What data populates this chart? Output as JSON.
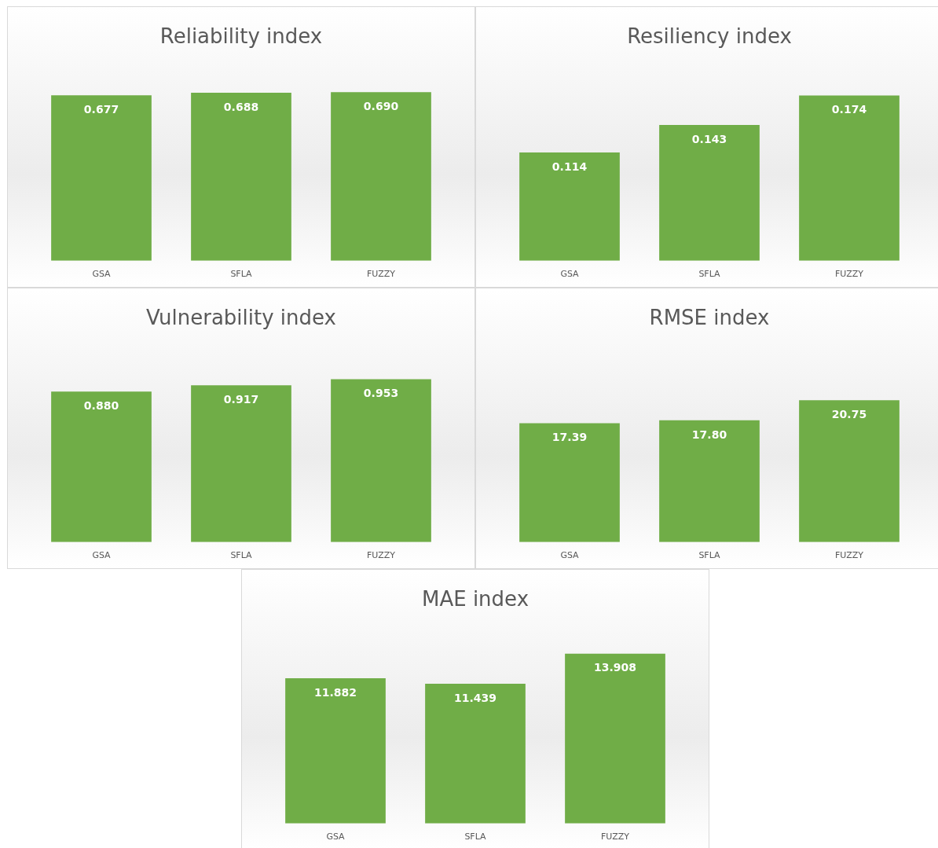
{
  "chart_data": [
    {
      "type": "bar",
      "title": "Reliability index",
      "categories": [
        "GSA",
        "SFLA",
        "FUZZY"
      ],
      "values": [
        0.677,
        0.688,
        0.69
      ],
      "value_labels": [
        "0.677",
        "0.688",
        "0.690"
      ],
      "color": "#70ad47",
      "grid": false,
      "tick_labels": "x",
      "legend": false
    },
    {
      "type": "bar",
      "title": "Resiliency index",
      "categories": [
        "GSA",
        "SFLA",
        "FUZZY"
      ],
      "values": [
        0.114,
        0.143,
        0.174
      ],
      "color": "#70ad47",
      "data_labels": true,
      "grid": false,
      "tick_labels": "x",
      "legend": false
    },
    {
      "type": "bar",
      "title": "Vulnerability index",
      "categories": [
        "GSA",
        "SFLA",
        "FUZZY"
      ],
      "values": [
        0.88,
        0.917,
        0.953
      ],
      "value_labels": [
        "0.880",
        "0.917",
        "0.953"
      ],
      "color": "#70ad47",
      "grid": false,
      "tick_labels": "x",
      "legend": false
    },
    {
      "type": "bar",
      "title": "RMSE index",
      "categories": [
        "GSA",
        "SFLA",
        "FUZZY"
      ],
      "values": [
        17.39,
        17.8,
        20.75
      ],
      "value_labels": [
        "17.39",
        "17.80",
        "20.75"
      ],
      "color": "#70ad47",
      "grid": false,
      "tick_labels": "x",
      "legend": false
    },
    {
      "type": "bar",
      "title": "MAE index",
      "categories": [
        "GSA",
        "SFLA",
        "FUZZY"
      ],
      "values": [
        11.882,
        11.439,
        13.908
      ],
      "color": "#70ad47",
      "data_labels": true,
      "grid": false,
      "tick_labels": "x",
      "legend": false
    }
  ]
}
